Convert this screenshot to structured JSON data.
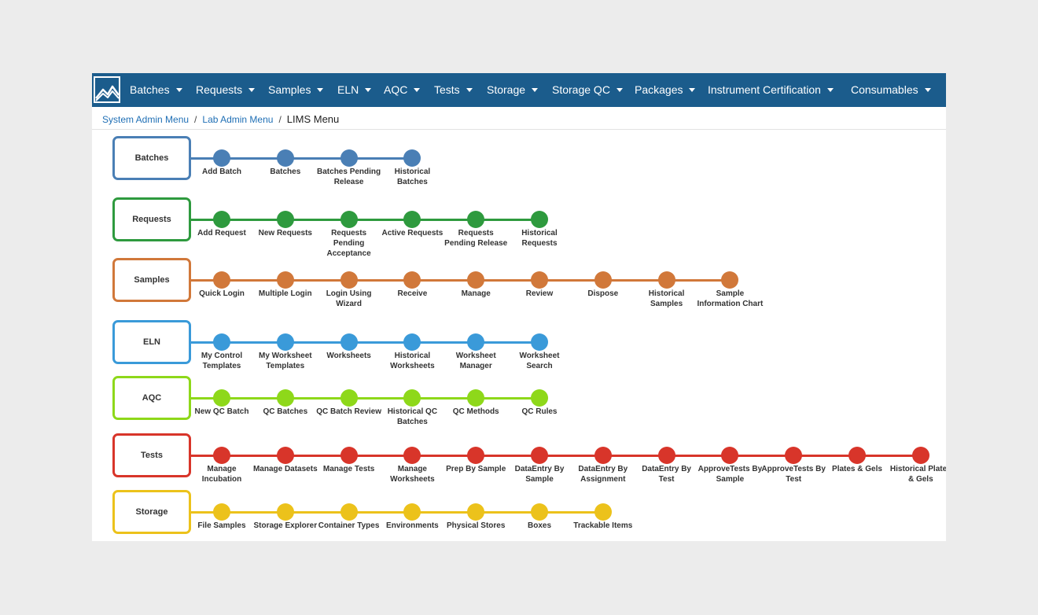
{
  "navbar": {
    "items": [
      {
        "label": "Batches"
      },
      {
        "label": "Requests"
      },
      {
        "label": "Samples"
      },
      {
        "label": "ELN"
      },
      {
        "label": "AQC"
      },
      {
        "label": "Tests"
      },
      {
        "label": "Storage"
      },
      {
        "label": "Storage QC"
      },
      {
        "label": "Packages"
      },
      {
        "label": "Instrument Certification"
      },
      {
        "label": "Consumables"
      }
    ],
    "background": "#1b5c8c"
  },
  "breadcrumb": {
    "items": [
      "System Admin Menu",
      "Lab Admin Menu"
    ],
    "current": "LIMS Menu",
    "separator": "/"
  },
  "rows": [
    {
      "name": "Batches",
      "color": "#4a7fb5",
      "items": [
        "Add Batch",
        "Batches",
        "Batches Pending Release",
        "Historical Batches"
      ]
    },
    {
      "name": "Requests",
      "color": "#2e9a3e",
      "items": [
        "Add Request",
        "New Requests",
        "Requests Pending Acceptance",
        "Active Requests",
        "Requests Pending Release",
        "Historical Requests"
      ]
    },
    {
      "name": "Samples",
      "color": "#d1783a",
      "items": [
        "Quick Login",
        "Multiple Login",
        "Login Using Wizard",
        "Receive",
        "Manage",
        "Review",
        "Dispose",
        "Historical Samples",
        "Sample Information Chart"
      ]
    },
    {
      "name": "ELN",
      "color": "#3a9ad9",
      "items": [
        "My Control Templates",
        "My Worksheet Templates",
        "Worksheets",
        "Historical Worksheets",
        "Worksheet Manager",
        "Worksheet Search"
      ]
    },
    {
      "name": "AQC",
      "color": "#8ed81a",
      "items": [
        "New QC Batch",
        "QC Batches",
        "QC Batch Review",
        "Historical QC Batches",
        "QC Methods",
        "QC Rules"
      ]
    },
    {
      "name": "Tests",
      "color": "#d8352a",
      "items": [
        "Manage Incubation",
        "Manage Datasets",
        "Manage Tests",
        "Manage Worksheets",
        "Prep By Sample",
        "DataEntry By Sample",
        "DataEntry By Assignment",
        "DataEntry By Test",
        "ApproveTests By Sample",
        "ApproveTests By Test",
        "Plates & Gels",
        "Historical Plates & Gels"
      ]
    },
    {
      "name": "Storage",
      "color": "#ecc21b",
      "items": [
        "File Samples",
        "Storage Explorer",
        "Container Types",
        "Environments",
        "Physical Stores",
        "Boxes",
        "Trackable Items"
      ]
    }
  ]
}
